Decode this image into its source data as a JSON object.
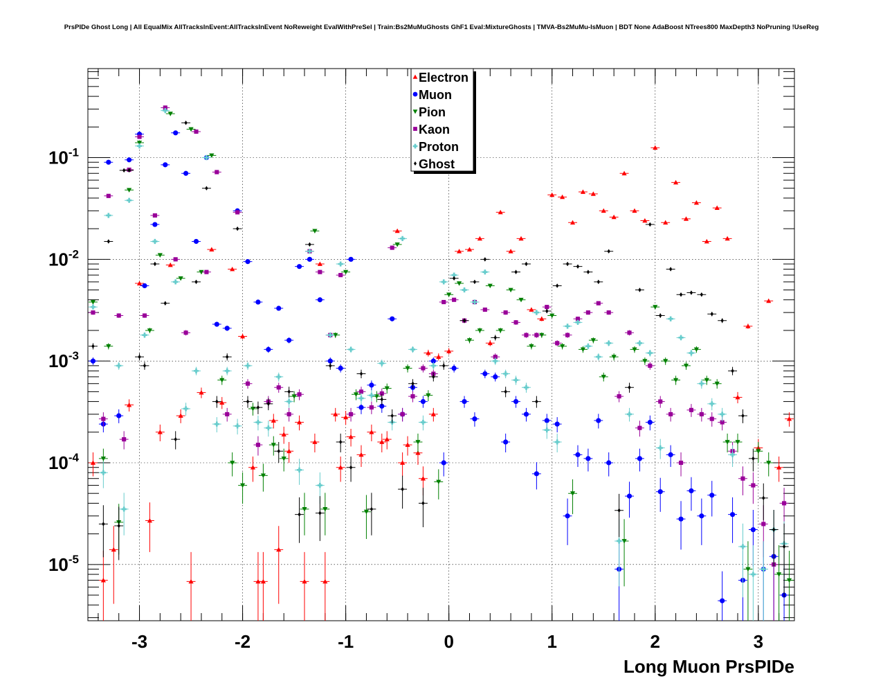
{
  "chart_data": {
    "type": "scatter",
    "title": "PrsPIDe Ghost Long | All EqualMix AllTracksInEvent:AllTracksInEvent NoReweight EvalWithPreSel | Train:Bs2MuMuGhosts GhF1 Eval:MixtureGhosts | TMVA-Bs2MuMu-IsMuon | BDT None AdaBoost NTrees800 MaxDepth3 NoPruning !UseReg",
    "xlabel": "Long Muon PrsPIDe",
    "ylabel": "",
    "xlim": [
      -3.5,
      3.35
    ],
    "ylim": [
      2.8e-06,
      0.75
    ],
    "yscale": "log",
    "grid": true,
    "legend_position": "top-center",
    "x_ticks": [
      {
        "value": -3,
        "label": "-3"
      },
      {
        "value": -2,
        "label": "-2"
      },
      {
        "value": -1,
        "label": "-1"
      },
      {
        "value": 0,
        "label": "0"
      },
      {
        "value": 1,
        "label": "1"
      },
      {
        "value": 2,
        "label": "2"
      },
      {
        "value": 3,
        "label": "3"
      }
    ],
    "y_ticks": [
      {
        "value": 1e-05,
        "base": "10",
        "exp": "-5"
      },
      {
        "value": 0.0001,
        "base": "10",
        "exp": "-4"
      },
      {
        "value": 0.001,
        "base": "10",
        "exp": "-3"
      },
      {
        "value": 0.01,
        "base": "10",
        "exp": "-2"
      },
      {
        "value": 0.1,
        "base": "10",
        "exp": "-1"
      }
    ],
    "series": [
      {
        "name": "Electron",
        "color": "#ff0000",
        "marker": "triangle-up",
        "x": [
          -3.45,
          -3.35,
          -3.25,
          -3.1,
          -3.0,
          -2.9,
          -2.8,
          -2.7,
          -2.6,
          -2.5,
          -2.4,
          -2.3,
          -2.2,
          -2.1,
          -2.0,
          -1.9,
          -1.85,
          -1.8,
          -1.7,
          -1.65,
          -1.6,
          -1.55,
          -1.45,
          -1.4,
          -1.3,
          -1.25,
          -1.2,
          -1.1,
          -1.05,
          -1.0,
          -0.95,
          -0.85,
          -0.75,
          -0.65,
          -0.6,
          -0.5,
          -0.45,
          -0.4,
          -0.3,
          -0.25,
          -0.2,
          -0.15,
          -0.1,
          0.0,
          0.1,
          0.2,
          0.3,
          0.4,
          0.5,
          0.6,
          0.7,
          0.8,
          0.9,
          1.0,
          1.1,
          1.2,
          1.3,
          1.4,
          1.5,
          1.6,
          1.7,
          1.8,
          1.9,
          2.0,
          2.1,
          2.2,
          2.3,
          2.4,
          2.5,
          2.6,
          2.7,
          2.8,
          2.9,
          3.0,
          3.1,
          3.2,
          3.3
        ],
        "y": [
          0.0001,
          7e-06,
          1.4e-05,
          0.00037,
          0.0058,
          2.7e-05,
          0.0002,
          0.0088,
          0.00029,
          6.8e-06,
          0.00049,
          0.0125,
          0.00039,
          0.008,
          0.00175,
          9e-05,
          6.8e-06,
          6.8e-06,
          0.00026,
          1.4e-05,
          0.00019,
          0.00013,
          0.00025,
          6.8e-06,
          0.00016,
          0.009,
          6.8e-06,
          0.0003,
          9e-05,
          0.00028,
          0.00018,
          0.00012,
          0.0002,
          0.00016,
          0.00017,
          0.019,
          0.0001,
          0.00015,
          0.000125,
          7e-05,
          0.0012,
          0.0003,
          0.0011,
          0.00125,
          0.012,
          0.0125,
          0.016,
          0.0015,
          0.029,
          0.012,
          0.016,
          0.0032,
          0.0026,
          0.043,
          0.041,
          0.023,
          0.046,
          0.044,
          0.03,
          0.026,
          0.07,
          0.03,
          0.024,
          0.125,
          0.023,
          0.057,
          0.025,
          0.036,
          0.015,
          0.032,
          0.016,
          0.00044,
          0.0022,
          0.00014,
          0.0039,
          9e-05,
          0.00027
        ]
      },
      {
        "name": "Muon",
        "color": "#0000ff",
        "marker": "circle",
        "x": [
          -3.45,
          -3.35,
          -3.3,
          -3.2,
          -3.1,
          -3.0,
          -2.95,
          -2.85,
          -2.75,
          -2.65,
          -2.55,
          -2.45,
          -2.35,
          -2.25,
          -2.15,
          -2.05,
          -1.95,
          -1.85,
          -1.75,
          -1.65,
          -1.55,
          -1.45,
          -1.35,
          -1.25,
          -1.15,
          -1.05,
          -0.95,
          -0.85,
          -0.75,
          -0.65,
          -0.55,
          -0.45,
          -0.35,
          -0.25,
          -0.15,
          -0.05,
          0.05,
          0.15,
          0.25,
          0.35,
          0.45,
          0.55,
          0.65,
          0.75,
          0.85,
          0.95,
          1.05,
          1.15,
          1.25,
          1.35,
          1.45,
          1.55,
          1.65,
          1.75,
          1.85,
          1.95,
          2.05,
          2.15,
          2.25,
          2.35,
          2.45,
          2.55,
          2.65,
          2.75,
          2.85,
          2.95,
          3.05,
          3.15,
          3.25
        ],
        "y": [
          0.001,
          0.00024,
          0.09,
          0.00029,
          0.095,
          0.17,
          0.0055,
          0.022,
          0.085,
          0.175,
          0.07,
          0.015,
          0.1,
          0.0023,
          0.0021,
          0.03,
          0.0095,
          0.0038,
          0.0013,
          0.0033,
          0.0016,
          0.0085,
          0.01,
          0.004,
          0.001,
          0.00085,
          0.01,
          0.00035,
          0.00058,
          0.00036,
          0.0026,
          0.0003,
          0.00055,
          0.0004,
          0.001,
          0.0001,
          0.00085,
          0.0004,
          0.00027,
          0.00075,
          0.0007,
          0.00016,
          0.0004,
          0.0003,
          7.8e-05,
          0.00026,
          0.00024,
          3e-05,
          0.00012,
          0.00011,
          0.00026,
          0.0001,
          9e-06,
          4.7e-05,
          0.00011,
          0.00025,
          5.2e-05,
          0.00012,
          2.8e-05,
          5.3e-05,
          3e-05,
          4.8e-05,
          4.4e-06,
          3.1e-05,
          7e-06,
          2.2e-05,
          9e-06,
          1.2e-05,
          5e-06
        ]
      },
      {
        "name": "Pion",
        "color": "#008000",
        "marker": "triangle-down",
        "x": [
          -3.45,
          -3.35,
          -3.3,
          -3.2,
          -3.1,
          -3.0,
          -2.9,
          -2.8,
          -2.7,
          -2.6,
          -2.5,
          -2.4,
          -2.3,
          -2.2,
          -2.1,
          -2.0,
          -1.9,
          -1.8,
          -1.7,
          -1.6,
          -1.5,
          -1.4,
          -1.3,
          -1.2,
          -1.1,
          -1.0,
          -0.9,
          -0.8,
          -0.7,
          -0.6,
          -0.5,
          -0.4,
          -0.3,
          -0.2,
          -0.1,
          0.0,
          0.1,
          0.2,
          0.3,
          0.4,
          0.5,
          0.6,
          0.7,
          0.8,
          0.9,
          1.0,
          1.1,
          1.2,
          1.3,
          1.4,
          1.5,
          1.6,
          1.7,
          1.8,
          1.9,
          2.0,
          2.1,
          2.2,
          2.3,
          2.4,
          2.5,
          2.6,
          2.7,
          2.8,
          2.9,
          3.0,
          3.1,
          3.2,
          3.3
        ],
        "y": [
          0.0038,
          0.00011,
          0.0014,
          2.6e-05,
          0.048,
          0.14,
          0.002,
          0.011,
          0.27,
          0.0065,
          0.19,
          0.0075,
          0.105,
          0.00065,
          0.0001,
          6e-05,
          0.00034,
          7.5e-05,
          0.00015,
          0.00011,
          0.00045,
          3.5e-05,
          0.019,
          3.5e-05,
          0.0018,
          0.0075,
          0.00047,
          3.3e-05,
          0.00045,
          0.00054,
          0.014,
          0.00085,
          0.00016,
          0.00046,
          6.5e-05,
          0.0045,
          0.0058,
          0.0016,
          0.002,
          0.0055,
          0.002,
          0.005,
          0.004,
          0.0014,
          0.0018,
          0.0028,
          0.0014,
          5e-05,
          0.0013,
          0.0016,
          0.0007,
          0.0011,
          1.7e-05,
          0.0013,
          0.001,
          0.0034,
          0.001,
          0.00065,
          0.0009,
          0.0013,
          0.00065,
          0.0006,
          0.00016,
          0.00016,
          9e-06,
          0.00013,
          0.0001,
          8e-06,
          7e-06
        ]
      },
      {
        "name": "Kaon",
        "color": "#990099",
        "marker": "square",
        "x": [
          -3.45,
          -3.35,
          -3.3,
          -3.2,
          -3.15,
          -3.1,
          -3.0,
          -2.95,
          -2.85,
          -2.75,
          -2.65,
          -2.55,
          -2.45,
          -2.35,
          -2.25,
          -2.15,
          -2.05,
          -1.95,
          -1.85,
          -1.75,
          -1.65,
          -1.55,
          -1.45,
          -1.35,
          -1.25,
          -1.15,
          -1.05,
          -0.95,
          -0.85,
          -0.75,
          -0.65,
          -0.55,
          -0.45,
          -0.35,
          -0.25,
          -0.15,
          -0.05,
          0.05,
          0.15,
          0.25,
          0.35,
          0.45,
          0.55,
          0.65,
          0.75,
          0.85,
          0.95,
          1.05,
          1.15,
          1.25,
          1.35,
          1.45,
          1.55,
          1.65,
          1.75,
          1.85,
          1.95,
          2.05,
          2.15,
          2.25,
          2.35,
          2.45,
          2.55,
          2.65,
          2.75,
          2.85,
          2.95,
          3.05,
          3.15,
          3.25
        ],
        "y": [
          0.003,
          0.00027,
          0.042,
          0.0028,
          0.00017,
          0.076,
          0.16,
          0.0028,
          0.027,
          0.31,
          0.01,
          0.0019,
          0.18,
          0.0075,
          0.072,
          0.0003,
          0.029,
          0.0006,
          0.00015,
          0.0004,
          0.00055,
          0.0003,
          0.00047,
          0.012,
          0.0075,
          0.0018,
          0.007,
          0.0003,
          0.0005,
          0.00035,
          0.00048,
          0.013,
          0.0003,
          0.00045,
          0.00085,
          0.00075,
          0.0038,
          0.004,
          0.0025,
          0.0038,
          0.0032,
          0.0011,
          0.003,
          0.0024,
          0.0018,
          0.0018,
          0.0034,
          0.0015,
          0.0018,
          0.0026,
          0.003,
          0.0037,
          0.003,
          0.00045,
          0.0019,
          0.00022,
          0.0009,
          0.0004,
          0.0003,
          0.0001,
          0.00033,
          0.0003,
          0.00027,
          0.00025,
          0.00013,
          7e-05,
          6e-05,
          2.5e-05,
          1e-05,
          4e-05
        ]
      },
      {
        "name": "Proton",
        "color": "#66cccc",
        "marker": "cross",
        "x": [
          -3.45,
          -3.35,
          -3.3,
          -3.2,
          -3.15,
          -3.1,
          -3.0,
          -2.95,
          -2.85,
          -2.75,
          -2.65,
          -2.55,
          -2.45,
          -2.35,
          -2.25,
          -2.15,
          -2.05,
          -1.95,
          -1.85,
          -1.75,
          -1.65,
          -1.55,
          -1.45,
          -1.35,
          -1.25,
          -1.15,
          -1.05,
          -0.95,
          -0.85,
          -0.75,
          -0.65,
          -0.55,
          -0.45,
          -0.35,
          -0.25,
          -0.15,
          -0.05,
          0.05,
          0.15,
          0.25,
          0.35,
          0.45,
          0.55,
          0.65,
          0.75,
          0.85,
          0.95,
          1.05,
          1.15,
          1.25,
          1.35,
          1.45,
          1.55,
          1.65,
          1.75,
          1.85,
          1.95,
          2.05,
          2.15,
          2.25,
          2.35,
          2.45,
          2.55,
          2.65,
          2.75,
          2.85,
          2.95,
          3.05,
          3.15,
          3.25
        ],
        "y": [
          0.0034,
          8e-05,
          0.027,
          0.0009,
          3.5e-05,
          0.038,
          0.13,
          0.0018,
          0.015,
          0.29,
          0.006,
          0.00034,
          0.0008,
          0.1,
          0.00024,
          0.0008,
          0.00023,
          0.0009,
          0.00025,
          0.00022,
          0.0007,
          0.0004,
          8.5e-05,
          0.012,
          6e-05,
          0.0018,
          0.009,
          0.0013,
          0.00043,
          0.00046,
          0.00095,
          0.00025,
          0.016,
          0.0013,
          0.00025,
          0.0009,
          0.006,
          0.007,
          0.005,
          0.0038,
          0.0075,
          0.001,
          0.00075,
          0.00065,
          0.00055,
          0.003,
          0.00021,
          0.00016,
          0.0022,
          0.0024,
          0.0014,
          0.0011,
          0.0015,
          1.7e-05,
          0.0003,
          0.0015,
          0.0012,
          0.00014,
          0.0026,
          0.0017,
          0.0012,
          0.0006,
          0.00038,
          0.0003,
          0.00012,
          1.5e-05,
          8e-06,
          9e-06,
          2.2e-05,
          1.6e-05
        ]
      },
      {
        "name": "Ghost",
        "color": "#000000",
        "marker": "diamond",
        "x": [
          -3.45,
          -3.35,
          -3.3,
          -3.2,
          -3.15,
          -3.1,
          -3.0,
          -2.95,
          -2.85,
          -2.75,
          -2.65,
          -2.55,
          -2.45,
          -2.35,
          -2.25,
          -2.15,
          -2.05,
          -1.95,
          -1.85,
          -1.75,
          -1.65,
          -1.55,
          -1.45,
          -1.35,
          -1.25,
          -1.15,
          -1.05,
          -0.95,
          -0.85,
          -0.75,
          -0.65,
          -0.55,
          -0.45,
          -0.35,
          -0.25,
          -0.15,
          -0.05,
          0.05,
          0.15,
          0.25,
          0.35,
          0.45,
          0.55,
          0.65,
          0.75,
          0.85,
          0.95,
          1.05,
          1.15,
          1.25,
          1.35,
          1.45,
          1.55,
          1.65,
          1.75,
          1.85,
          1.95,
          2.05,
          2.15,
          2.25,
          2.35,
          2.45,
          2.55,
          2.65,
          2.75,
          2.85,
          2.95,
          3.05,
          3.15,
          3.25
        ],
        "y": [
          0.0014,
          2.5e-05,
          0.015,
          2.4e-05,
          0.075,
          0.075,
          0.0011,
          0.0009,
          0.009,
          0.0037,
          0.00017,
          0.22,
          0.006,
          0.05,
          0.0004,
          0.0011,
          0.02,
          0.0004,
          0.00035,
          0.00038,
          0.00013,
          0.0005,
          3.1e-05,
          0.014,
          3.2e-05,
          0.0009,
          0.00016,
          9e-05,
          0.00075,
          3.5e-05,
          0.00042,
          0.00029,
          5.5e-05,
          0.0006,
          4e-05,
          0.0007,
          0.0009,
          0.0065,
          0.0025,
          0.006,
          0.01,
          0.0017,
          0.0005,
          0.0075,
          0.009,
          0.0004,
          0.0031,
          0.0055,
          0.009,
          0.0085,
          0.0075,
          0.006,
          0.012,
          3.4e-05,
          0.00055,
          0.005,
          0.022,
          0.0028,
          0.008,
          0.0045,
          0.0047,
          0.0045,
          0.0029,
          0.0025,
          0.0008,
          0.00029,
          0.00011,
          4.5e-05,
          2.2e-05,
          1.5e-05
        ]
      }
    ]
  }
}
